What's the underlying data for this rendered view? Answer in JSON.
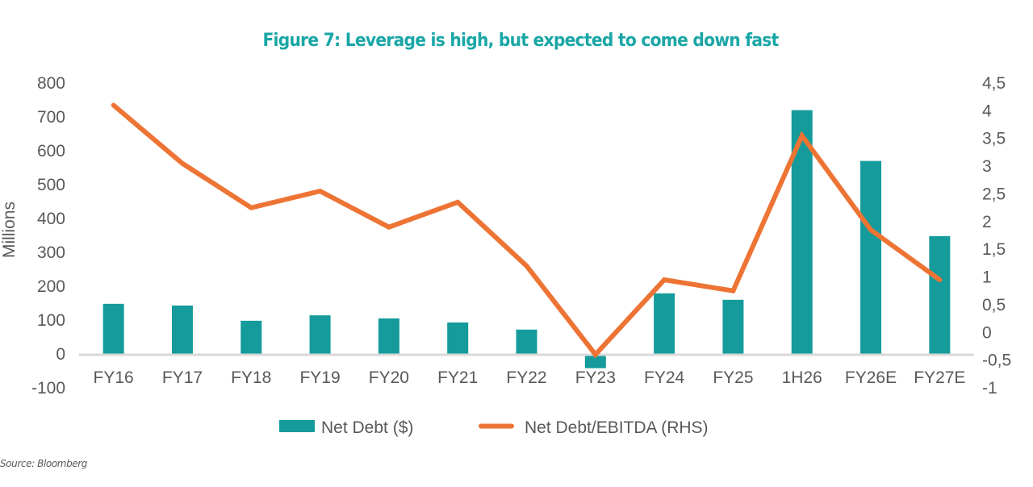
{
  "chart_data": {
    "type": "bar",
    "title": "Figure 7: Leverage is high, but expected to come down fast",
    "xlabel": "",
    "ylabel": "Millions",
    "y2label": "",
    "categories": [
      "FY16",
      "FY17",
      "FY18",
      "FY19",
      "FY20",
      "FY21",
      "FY22",
      "FY23",
      "FY24",
      "FY25",
      "1H26",
      "FY26E",
      "FY27E"
    ],
    "series": [
      {
        "name": "Net Debt ($)",
        "type": "bar",
        "axis": "left",
        "color": "#159b9b",
        "values": [
          148,
          143,
          98,
          114,
          105,
          93,
          72,
          -42,
          179,
          160,
          720,
          570,
          348
        ]
      },
      {
        "name": "Net Debt/EBITDA (RHS)",
        "type": "line",
        "axis": "right",
        "color": "#ed7434",
        "values": [
          4.1,
          3.05,
          2.25,
          2.55,
          1.9,
          2.35,
          1.2,
          -0.4,
          0.95,
          0.75,
          3.55,
          1.85,
          0.95
        ]
      }
    ],
    "ylim": [
      -100,
      800
    ],
    "y_ticks": [
      800,
      700,
      600,
      500,
      400,
      300,
      200,
      100,
      0,
      -100
    ],
    "y_tick_labels": [
      "800",
      "700",
      "600",
      "500",
      "400",
      "300",
      "200",
      "100",
      "0",
      "-100"
    ],
    "y2lim": [
      -1,
      4.5
    ],
    "y2_ticks": [
      4.5,
      4,
      3.5,
      3,
      2.5,
      2,
      1.5,
      1,
      0.5,
      0,
      -0.5,
      -1
    ],
    "y2_tick_labels": [
      "4,5",
      "4",
      "3,5",
      "3",
      "2,5",
      "2",
      "1,5",
      "1",
      "0,5",
      "0",
      "-0,5",
      "-1"
    ],
    "grid": false,
    "legend_position": "bottom-center",
    "title_color": "#1aa6a6",
    "axis_line_color": "#d9d9d9"
  },
  "legend": {
    "items": [
      {
        "label": "Net Debt ($)",
        "symbol": "bar"
      },
      {
        "label": "Net Debt/EBITDA (RHS)",
        "symbol": "line"
      }
    ]
  },
  "source": "Source: Bloomberg"
}
